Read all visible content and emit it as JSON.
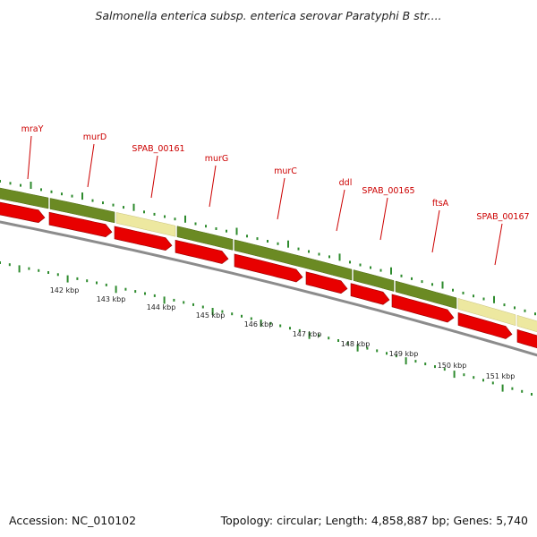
{
  "title": "Salmonella enterica subsp. enterica serovar Paratyphi B str....",
  "footer": {
    "accession": "Accession: NC_010102",
    "summary": "Topology: circular; Length: 4,858,887 bp; Genes: 5,740"
  },
  "colors": {
    "feature_green": "#6b8a23",
    "feature_yellow": "#ede8a0",
    "gene_arrow_red": "#e80000",
    "backbone_gray": "#8c8c8c",
    "tick_green": "#2e8b2e",
    "label_red": "#cc0000"
  },
  "gene_labels": [
    "mraY",
    "murD",
    "SPAB_00161",
    "murG",
    "murC",
    "ddl",
    "SPAB_00165",
    "ftsA",
    "SPAB_00167"
  ],
  "kbp_labels": [
    "142 kbp",
    "143 kbp",
    "144 kbp",
    "145 kbp",
    "146 kbp",
    "147 kbp",
    "148 kbp",
    "149 kbp",
    "150 kbp",
    "151 kbp"
  ],
  "feature_track": [
    "green",
    "green",
    "yellow",
    "green",
    "green",
    "green",
    "green",
    "yellow",
    "yellow",
    "green"
  ],
  "gene_arrow_count": 10
}
